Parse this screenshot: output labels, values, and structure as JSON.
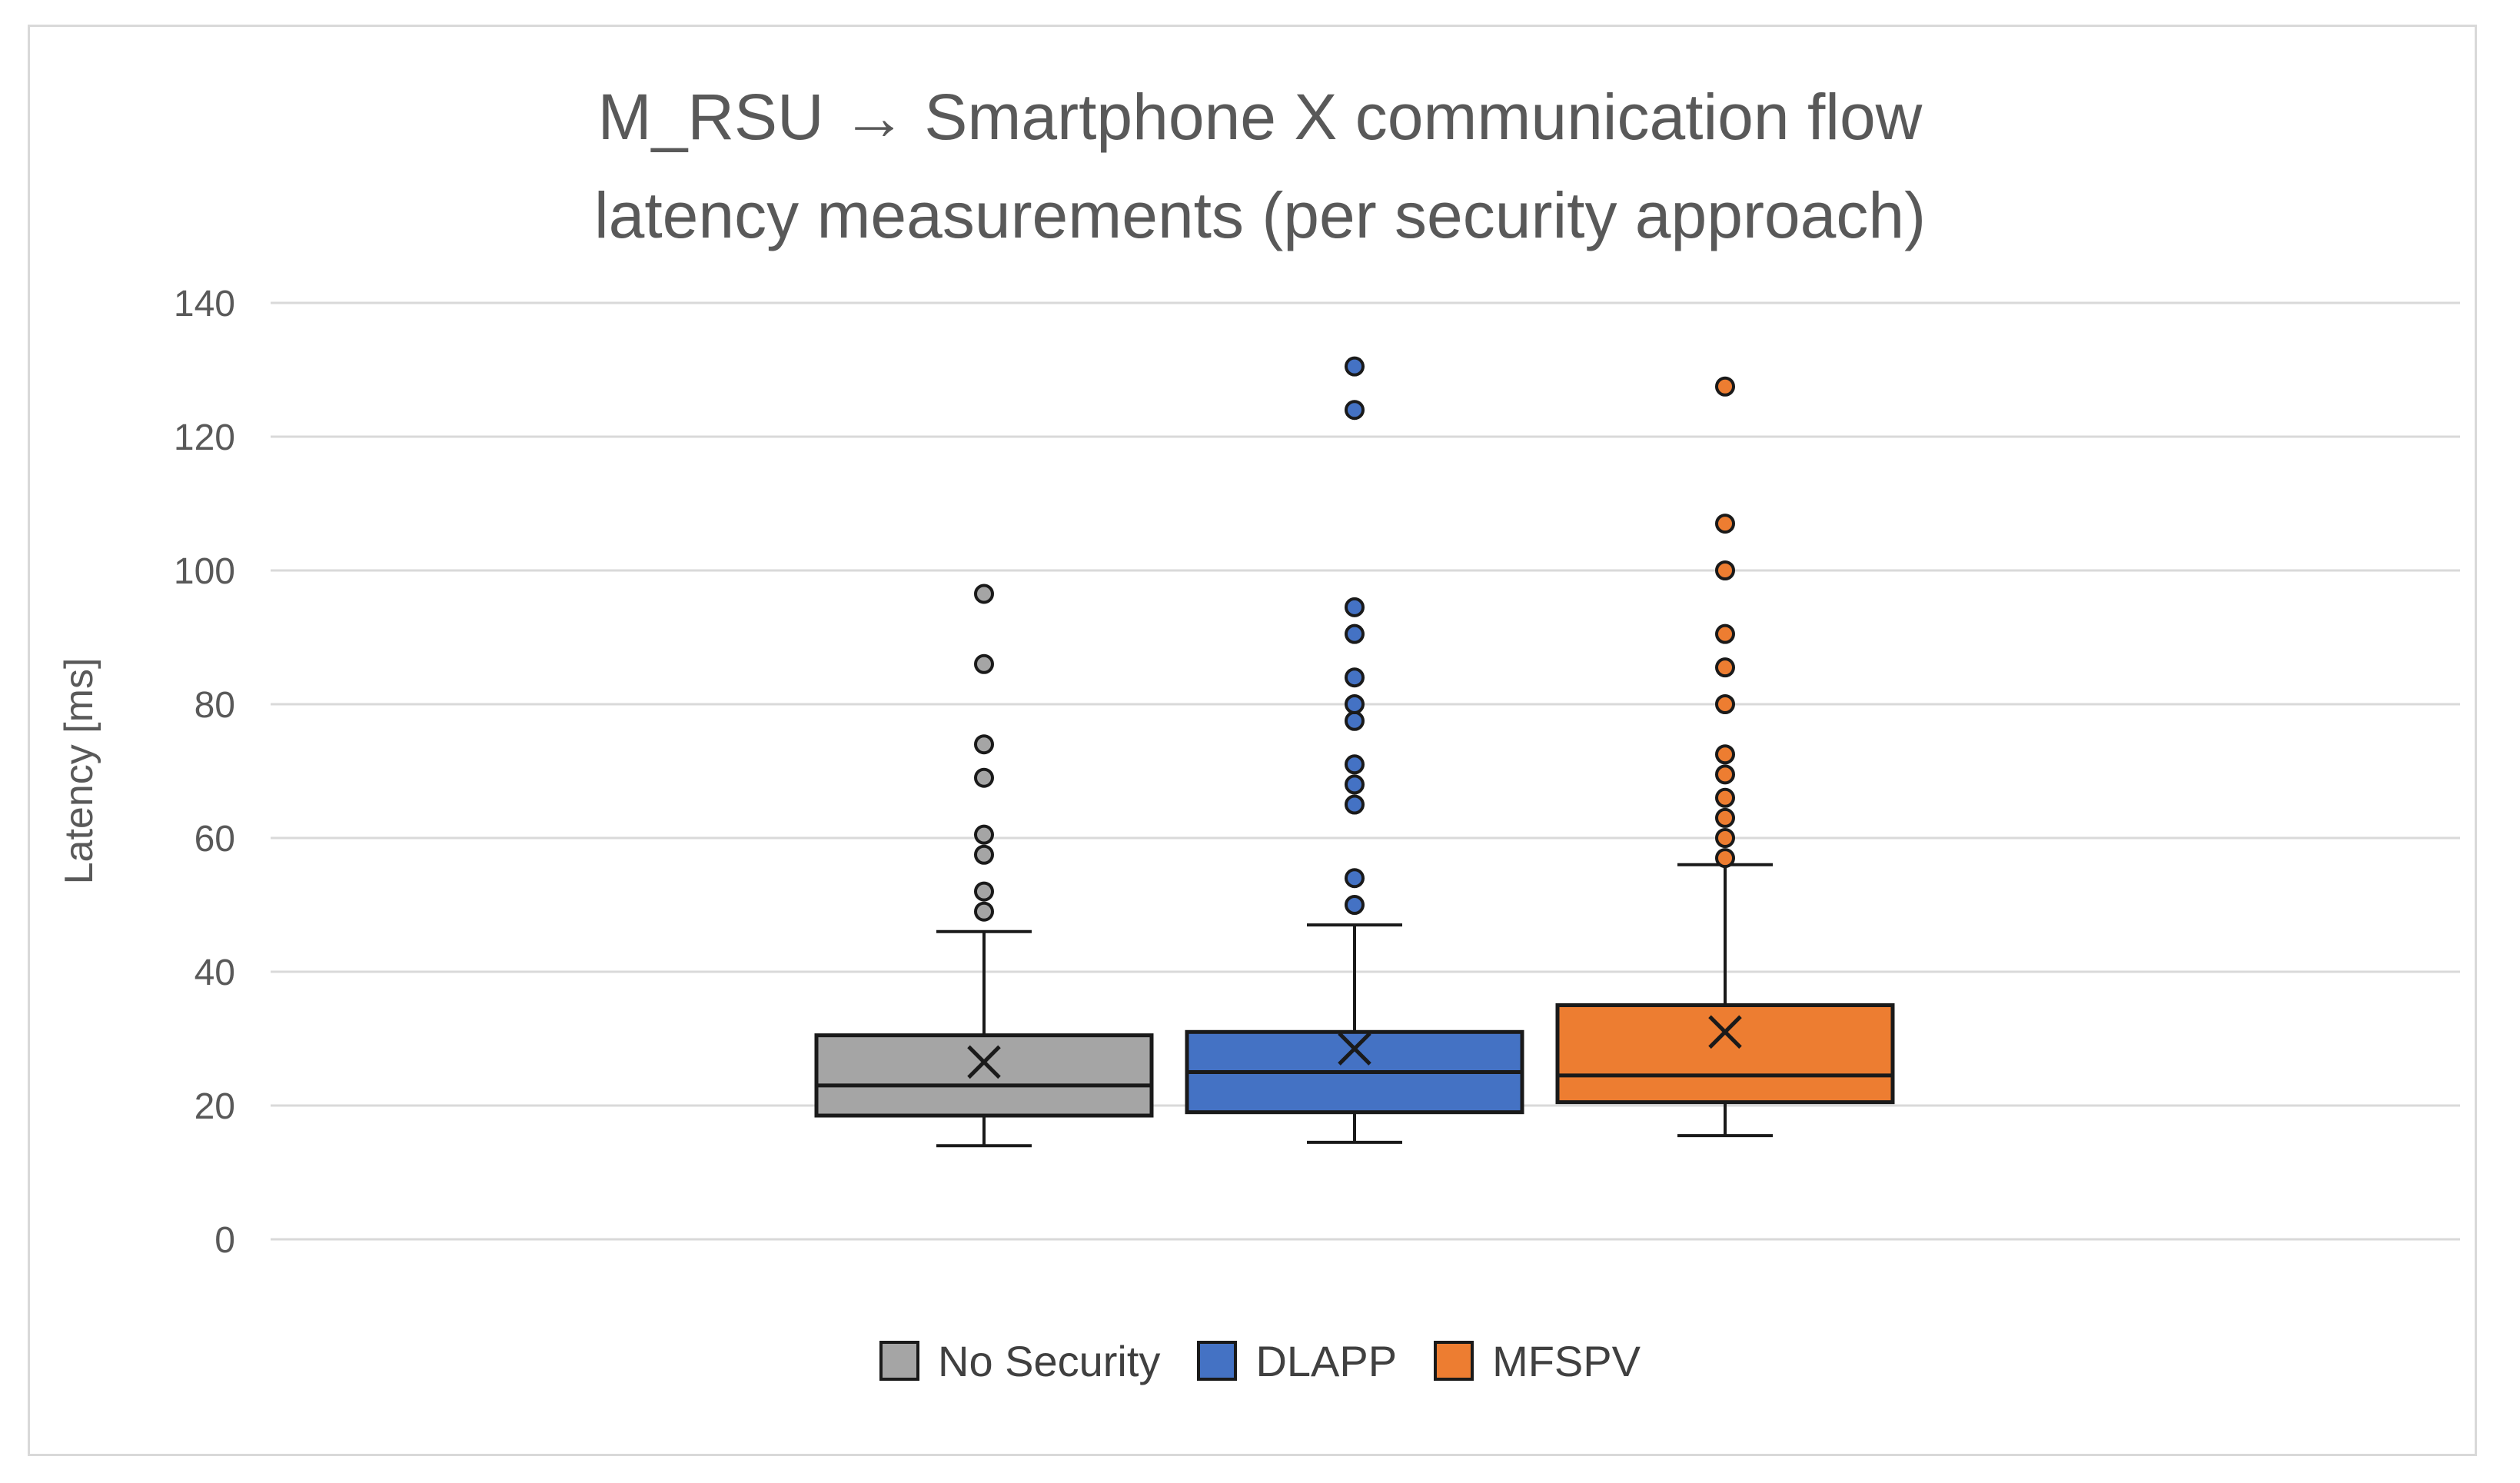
{
  "chart_data": {
    "type": "box",
    "title_lines": [
      "M_RSU → Smartphone X communication flow",
      "latency measurements (per security approach)"
    ],
    "xlabel": "",
    "ylabel": "Latency [ms]",
    "ylim": [
      0,
      140
    ],
    "yticks": [
      0,
      20,
      40,
      60,
      80,
      100,
      120,
      140
    ],
    "ytick_labels": [
      "0",
      "20",
      "40",
      "60",
      "80",
      "100",
      "120",
      "140"
    ],
    "grid": true,
    "legend_position": "bottom",
    "series": [
      {
        "name": "No Security",
        "color": "#a5a5a5",
        "whisker_low": 14,
        "q1": 18.5,
        "median": 23,
        "q3": 30.5,
        "whisker_high": 46,
        "mean": 26.5,
        "outliers": [
          49,
          52,
          57.5,
          60.5,
          69,
          74,
          86,
          96.5
        ]
      },
      {
        "name": "DLAPP",
        "color": "#4472c4",
        "whisker_low": 14.5,
        "q1": 19,
        "median": 25,
        "q3": 31,
        "whisker_high": 47,
        "mean": 28.5,
        "outliers": [
          50,
          54,
          65,
          68,
          71,
          77.5,
          80,
          84,
          90.5,
          94.5,
          124,
          130.5
        ]
      },
      {
        "name": "MFSPV",
        "color": "#ed7d31",
        "whisker_low": 15.5,
        "q1": 20.5,
        "median": 24.5,
        "q3": 35,
        "whisker_high": 56,
        "mean": 31,
        "outliers": [
          57,
          60,
          63,
          66,
          69.5,
          72.5,
          80,
          85.5,
          90.5,
          100,
          107,
          127.5
        ]
      }
    ]
  }
}
